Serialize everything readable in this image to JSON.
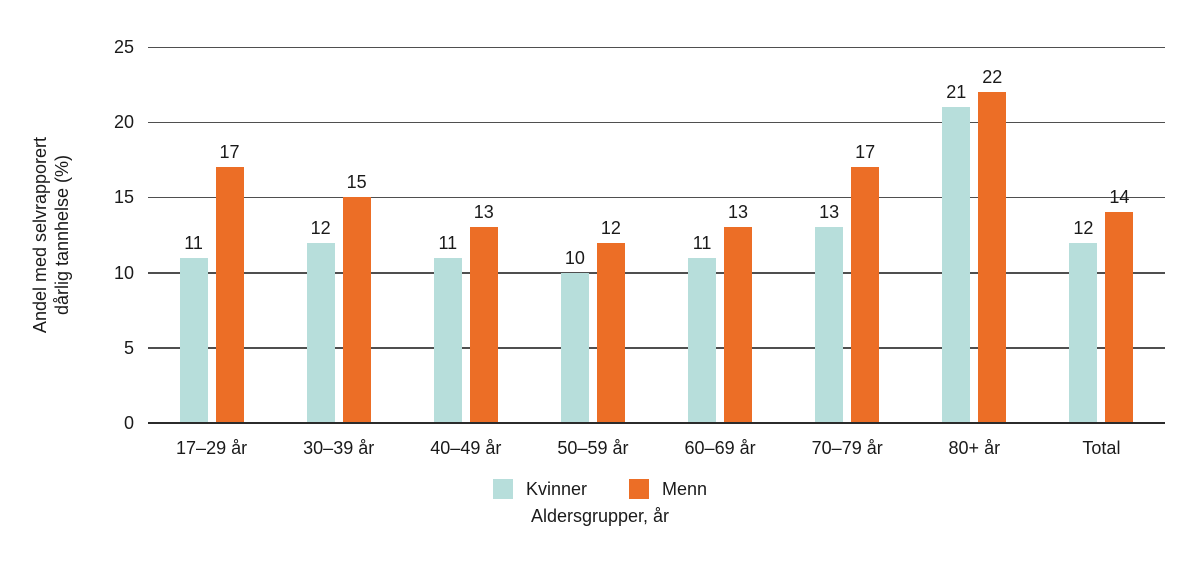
{
  "figure": {
    "y_axis_title_line1": "Andel med selvrapporert",
    "y_axis_title_line2": "dårlig tannhelse (%)",
    "x_axis_title": "Aldersgrupper, år"
  },
  "chart_data": {
    "type": "bar",
    "title": "",
    "xlabel": "Aldersgrupper, år",
    "ylabel": "Andel med selvrapporert dårlig tannhelse (%)",
    "categories": [
      "17–29 år",
      "30–39 år",
      "40–49 år",
      "50–59 år",
      "60–69 år",
      "70–79 år",
      "80+ år",
      "Total"
    ],
    "series": [
      {
        "name": "Kvinner",
        "color": "#b7dedb",
        "values": [
          11,
          12,
          11,
          10,
          11,
          13,
          21,
          12
        ]
      },
      {
        "name": "Menn",
        "color": "#ec6e26",
        "values": [
          17,
          15,
          13,
          12,
          13,
          17,
          22,
          14
        ]
      }
    ],
    "ylim": [
      0,
      25
    ],
    "yticks": [
      0,
      5,
      10,
      15,
      20,
      25
    ],
    "grid": "horizontal",
    "bar_value_labels": true,
    "legend_position": "bottom-center"
  },
  "colors": {
    "kvinner": "#b7dedb",
    "menn": "#ec6e26",
    "gridline": "#4f4f4f",
    "axis": "#2b2b2b",
    "text": "#1a1a1a",
    "background": "#ffffff"
  }
}
